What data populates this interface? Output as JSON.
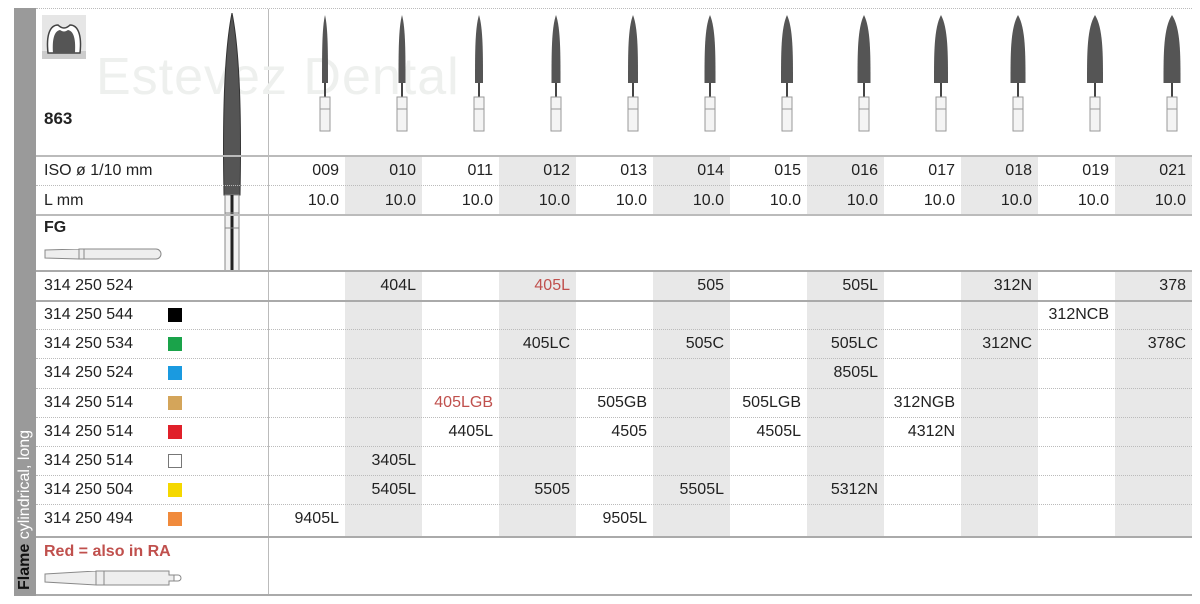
{
  "section": {
    "shape": "Flame",
    "type": "cylindrical, long"
  },
  "product": {
    "number": "863",
    "watermark": "Estevez Dental",
    "shank": "FG",
    "note": "Red = also in RA"
  },
  "header": {
    "iso_label": "ISO ø 1/10 mm",
    "length_label": "L mm",
    "iso": [
      "009",
      "010",
      "011",
      "012",
      "013",
      "014",
      "015",
      "016",
      "017",
      "018",
      "019",
      "021"
    ],
    "length": [
      "10.0",
      "10.0",
      "10.0",
      "10.0",
      "10.0",
      "10.0",
      "10.0",
      "10.0",
      "10.0",
      "10.0",
      "10.0",
      "10.0"
    ]
  },
  "colors": {
    "red_text": "#c0504d",
    "shade": "#e8e8e8"
  },
  "rows": [
    {
      "code": "314 250 524",
      "swatch": null,
      "cells": [
        "",
        "404L",
        "",
        "405L",
        "",
        "505",
        "",
        "505L",
        "",
        "312N",
        "",
        "378"
      ],
      "red": [
        3
      ]
    },
    {
      "code": "314 250 544",
      "swatch": "#000000",
      "cells": [
        "",
        "",
        "",
        "",
        "",
        "",
        "",
        "",
        "",
        "",
        "312NCB",
        ""
      ],
      "red": []
    },
    {
      "code": "314 250 534",
      "swatch": "#1aa34a",
      "cells": [
        "",
        "",
        "",
        "405LC",
        "",
        "505C",
        "",
        "505LC",
        "",
        "312NC",
        "",
        "378C"
      ],
      "red": []
    },
    {
      "code": "314 250 524",
      "swatch": "#1a9ae0",
      "cells": [
        "",
        "",
        "",
        "",
        "",
        "",
        "",
        "8505L",
        "",
        "",
        "",
        ""
      ],
      "red": []
    },
    {
      "code": "314 250 514",
      "swatch": "#d4a55a",
      "cells": [
        "",
        "",
        "405LGB",
        "",
        "505GB",
        "",
        "505LGB",
        "",
        "312NGB",
        "",
        "",
        ""
      ],
      "red": [
        2
      ]
    },
    {
      "code": "314 250 514",
      "swatch": "#e0202a",
      "cells": [
        "",
        "",
        "4405L",
        "",
        "4505",
        "",
        "4505L",
        "",
        "4312N",
        "",
        "",
        ""
      ],
      "red": []
    },
    {
      "code": "314 250 514",
      "swatch": "#ffffff",
      "cells": [
        "",
        "3405L",
        "",
        "",
        "",
        "",
        "",
        "",
        "",
        "",
        "",
        ""
      ],
      "red": []
    },
    {
      "code": "314 250 504",
      "swatch": "#f5d800",
      "cells": [
        "",
        "5405L",
        "",
        "5505",
        "",
        "5505L",
        "",
        "5312N",
        "",
        "",
        "",
        ""
      ],
      "red": []
    },
    {
      "code": "314 250 494",
      "swatch": "#f08a3c",
      "cells": [
        "9405L",
        "",
        "",
        "",
        "9505L",
        "",
        "",
        "",
        "",
        "",
        "",
        ""
      ],
      "red": []
    }
  ]
}
